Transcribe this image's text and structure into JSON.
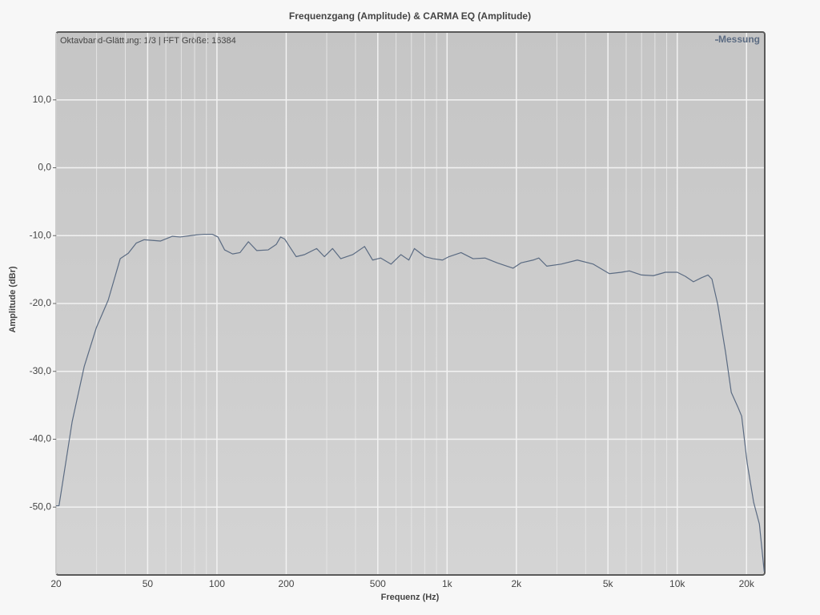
{
  "chart_data": {
    "type": "line",
    "title": "Frequenzgang (Amplitude) & CARMA EQ (Amplitude)",
    "annotation": "Oktavband-Glättung: 1/3 | FFT Größe: 16384",
    "x_label": "Frequenz (Hz)",
    "y_label": "Amplitude (dBr)",
    "x_log": true,
    "grid": true,
    "legend_position": "top-right",
    "xlim": [
      20,
      24000
    ],
    "ylim": [
      -60,
      20
    ],
    "xticks": [
      20,
      50,
      100,
      200,
      500,
      {
        "value": 1000,
        "label": "1k"
      },
      {
        "value": 2000,
        "label": "2k"
      },
      {
        "value": 5000,
        "label": "5k"
      },
      {
        "value": 10000,
        "label": "10k"
      },
      {
        "value": 20000,
        "label": "20k"
      }
    ],
    "xminorticks": [
      30,
      40,
      60,
      70,
      80,
      90,
      300,
      400,
      600,
      700,
      800,
      900,
      3000,
      4000,
      6000,
      7000,
      8000,
      9000
    ],
    "yticks": [
      {
        "value": -50,
        "label": "-50,0"
      },
      {
        "value": -40,
        "label": "-40,0"
      },
      {
        "value": -30,
        "label": "-30,0"
      },
      {
        "value": -20,
        "label": "-20,0"
      },
      {
        "value": -10,
        "label": "-10,0"
      },
      {
        "value": 0,
        "label": "0,0"
      },
      {
        "value": 10,
        "label": "10,0"
      }
    ],
    "x": [
      20,
      20.6,
      23.5,
      26.5,
      29.9,
      33.7,
      38,
      41.2,
      44.6,
      48.3,
      56.8,
      64,
      69.3,
      81.3,
      88.1,
      95.4,
      101,
      108,
      117,
      126,
      137,
      149,
      167,
      181,
      189,
      197,
      204,
      221,
      240,
      271,
      293,
      318,
      345,
      389,
      438,
      475,
      515,
      571,
      630,
      682,
      721,
      801,
      869,
      955,
      1019,
      1150,
      1297,
      1462,
      1648,
      1936,
      2099,
      2365,
      2503,
      2711,
      3132,
      3681,
      4318,
      5071,
      5718,
      6192,
      6994,
      7880,
      8879,
      10000,
      10850,
      11760,
      12750,
      13600,
      14150,
      14990,
      16220,
      17170,
      18310,
      19050,
      20150,
      21480,
      22750,
      23870
    ],
    "series": [
      {
        "name": "Messung",
        "color": "#5b6b82",
        "values": [
          -49.8,
          -49.8,
          -37.4,
          -29.3,
          -23.6,
          -19.5,
          -13.4,
          -12.6,
          -11.1,
          -10.6,
          -10.8,
          -10.1,
          -10.2,
          -9.9,
          -9.8,
          -9.8,
          -10.2,
          -12.1,
          -12.7,
          -12.5,
          -10.9,
          -12.2,
          -12.1,
          -11.3,
          -10.2,
          -10.5,
          -11.3,
          -13.1,
          -12.8,
          -11.9,
          -13.1,
          -11.9,
          -13.4,
          -12.8,
          -11.6,
          -13.6,
          -13.3,
          -14.2,
          -12.8,
          -13.6,
          -11.9,
          -13.1,
          -13.4,
          -13.6,
          -13.1,
          -12.5,
          -13.4,
          -13.3,
          -14.0,
          -14.8,
          -14.0,
          -13.6,
          -13.3,
          -14.5,
          -14.2,
          -13.6,
          -14.2,
          -15.6,
          -15.4,
          -15.2,
          -15.8,
          -15.9,
          -15.4,
          -15.4,
          -16.0,
          -16.8,
          -16.2,
          -15.8,
          -16.4,
          -20.1,
          -27.2,
          -33.1,
          -35.2,
          -36.6,
          -43.6,
          -49.3,
          -52.5,
          -59.5
        ]
      }
    ]
  }
}
